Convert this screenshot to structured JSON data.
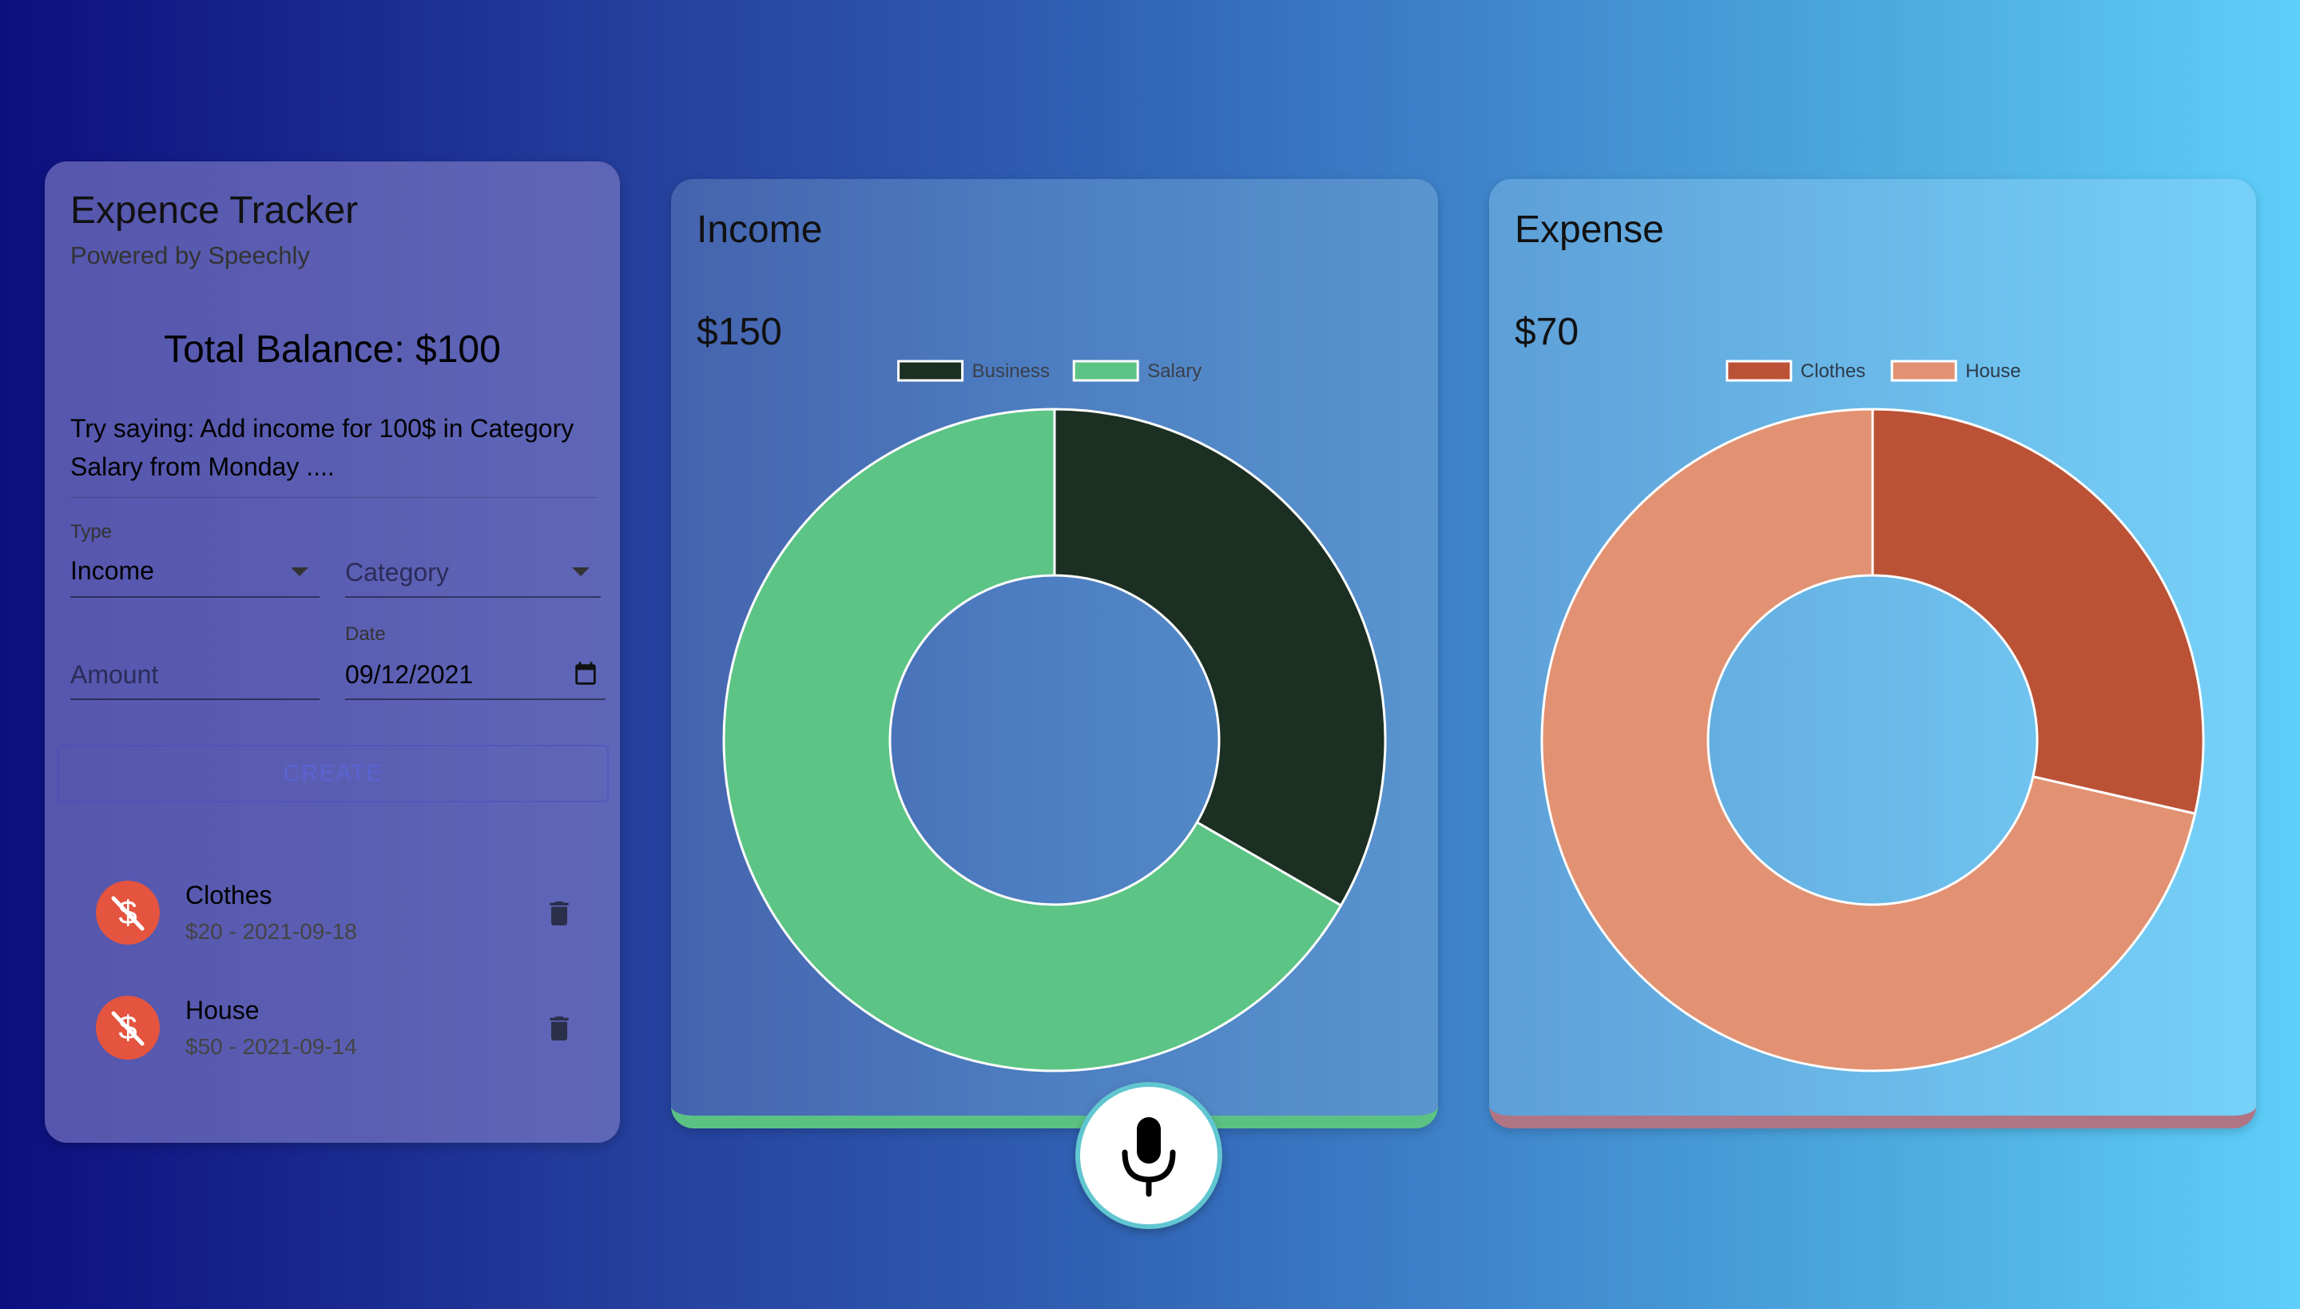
{
  "tracker": {
    "title": "Expence Tracker",
    "subtitle": "Powered by Speechly",
    "balance": "Total Balance: $100",
    "hint": "Try saying: Add income for 100$ in Category Salary from Monday ....",
    "type_label": "Type",
    "type_value": "Income",
    "category_placeholder": "Category",
    "amount_placeholder": "Amount",
    "date_label": "Date",
    "date_value": "09/12/2021",
    "create_label": "CREATE",
    "transactions": [
      {
        "name": "Clothes",
        "detail": "$20 - 2021-09-18"
      },
      {
        "name": "House",
        "detail": "$50 - 2021-09-14"
      }
    ]
  },
  "income": {
    "title": "Income",
    "total": "$150"
  },
  "expense": {
    "title": "Expense",
    "total": "$70"
  },
  "icons": {
    "transaction": "money-off-icon",
    "delete": "trash-icon",
    "date": "calendar-icon",
    "voice": "microphone-icon"
  },
  "colors": {
    "business": "#1b2f22",
    "salary": "#5cc485",
    "clothes": "#bb5236",
    "house": "#e29272",
    "expense_avatar": "#e4543f"
  },
  "chart_data": [
    {
      "type": "pie",
      "subtype": "doughnut",
      "labels": [
        "Business",
        "Salary"
      ],
      "values": [
        50,
        100
      ],
      "colors": [
        "#1b2f22",
        "#5cc485"
      ],
      "legend": "top"
    },
    {
      "type": "pie",
      "subtype": "doughnut",
      "labels": [
        "Clothes",
        "House"
      ],
      "values": [
        20,
        50
      ],
      "colors": [
        "#bb5236",
        "#e29272"
      ],
      "legend": "top"
    }
  ]
}
